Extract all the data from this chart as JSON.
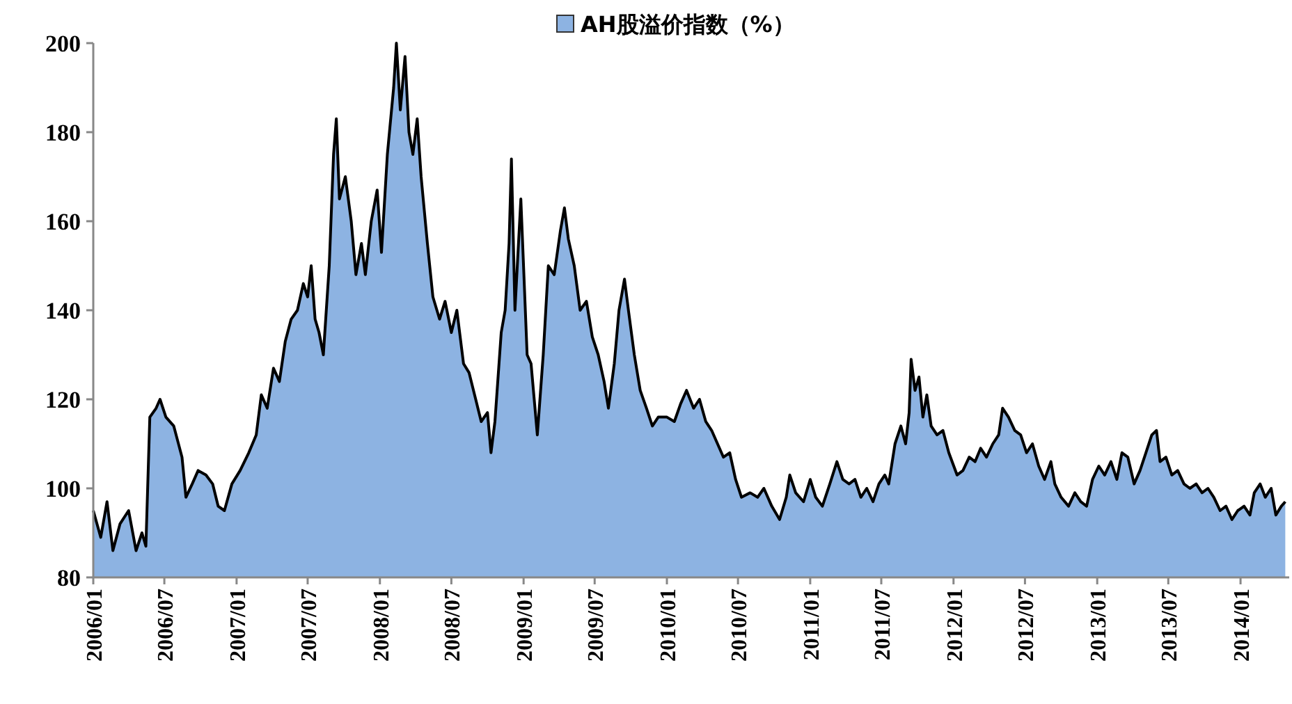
{
  "chart_data": {
    "type": "area",
    "legend": "top",
    "grid": false,
    "xlim": [
      "2006-01-01",
      "2014-05-05"
    ],
    "xticks": [
      {
        "value": "2006-01",
        "label": "2006/01"
      },
      {
        "value": "2006-07",
        "label": "2006/07"
      },
      {
        "value": "2007-01",
        "label": "2007/01"
      },
      {
        "value": "2007-07",
        "label": "2007/07"
      },
      {
        "value": "2008-01",
        "label": "2008/01"
      },
      {
        "value": "2008-07",
        "label": "2008/07"
      },
      {
        "value": "2009-01",
        "label": "2009/01"
      },
      {
        "value": "2009-07",
        "label": "2009/07"
      },
      {
        "value": "2010-01",
        "label": "2010/01"
      },
      {
        "value": "2010-07",
        "label": "2010/07"
      },
      {
        "value": "2011-01",
        "label": "2011/01"
      },
      {
        "value": "2011-07",
        "label": "2011/07"
      },
      {
        "value": "2012-01",
        "label": "2012/01"
      },
      {
        "value": "2012-07",
        "label": "2012/07"
      },
      {
        "value": "2013-01",
        "label": "2013/01"
      },
      {
        "value": "2013-07",
        "label": "2013/07"
      },
      {
        "value": "2014-01",
        "label": "2014/01"
      }
    ],
    "ylim": [
      80,
      200
    ],
    "yticks": [
      80,
      100,
      120,
      140,
      160,
      180,
      200
    ],
    "series": [
      {
        "name": "AH股溢价指数（%）",
        "color": "#8db3e2",
        "x": [
          "2006-01-01",
          "2006-01-20",
          "2006-02-05",
          "2006-02-20",
          "2006-03-10",
          "2006-04-01",
          "2006-04-20",
          "2006-05-05",
          "2006-05-15",
          "2006-05-25",
          "2006-06-10",
          "2006-06-20",
          "2006-07-05",
          "2006-07-25",
          "2006-08-15",
          "2006-08-25",
          "2006-09-10",
          "2006-09-25",
          "2006-10-15",
          "2006-11-01",
          "2006-11-15",
          "2006-12-01",
          "2006-12-20",
          "2007-01-10",
          "2007-02-01",
          "2007-02-20",
          "2007-03-05",
          "2007-03-20",
          "2007-04-05",
          "2007-04-20",
          "2007-05-05",
          "2007-05-20",
          "2007-06-05",
          "2007-06-20",
          "2007-07-01",
          "2007-07-10",
          "2007-07-20",
          "2007-07-30",
          "2007-08-10",
          "2007-08-25",
          "2007-09-05",
          "2007-09-12",
          "2007-09-20",
          "2007-10-05",
          "2007-10-20",
          "2007-11-01",
          "2007-11-15",
          "2007-11-25",
          "2007-12-10",
          "2007-12-25",
          "2008-01-05",
          "2008-01-20",
          "2008-02-05",
          "2008-02-12",
          "2008-02-22",
          "2008-03-05",
          "2008-03-15",
          "2008-03-25",
          "2008-04-05",
          "2008-04-15",
          "2008-05-01",
          "2008-05-15",
          "2008-06-01",
          "2008-06-15",
          "2008-07-01",
          "2008-07-15",
          "2008-08-01",
          "2008-08-15",
          "2008-09-01",
          "2008-09-15",
          "2008-10-01",
          "2008-10-10",
          "2008-10-20",
          "2008-11-05",
          "2008-11-15",
          "2008-11-25",
          "2008-12-01",
          "2008-12-10",
          "2008-12-25",
          "2009-01-10",
          "2009-01-20",
          "2009-02-05",
          "2009-02-20",
          "2009-03-05",
          "2009-03-20",
          "2009-04-05",
          "2009-04-15",
          "2009-04-25",
          "2009-05-10",
          "2009-05-25",
          "2009-06-10",
          "2009-06-25",
          "2009-07-10",
          "2009-07-25",
          "2009-08-05",
          "2009-08-20",
          "2009-09-01",
          "2009-09-15",
          "2009-09-25",
          "2009-10-10",
          "2009-10-25",
          "2009-11-10",
          "2009-11-25",
          "2009-12-10",
          "2010-01-01",
          "2010-01-20",
          "2010-02-05",
          "2010-02-20",
          "2010-03-10",
          "2010-03-25",
          "2010-04-10",
          "2010-04-25",
          "2010-05-10",
          "2010-05-25",
          "2010-06-10",
          "2010-06-25",
          "2010-07-10",
          "2010-08-01",
          "2010-08-20",
          "2010-09-05",
          "2010-09-25",
          "2010-10-15",
          "2010-11-01",
          "2010-11-10",
          "2010-11-25",
          "2010-12-15",
          "2011-01-01",
          "2011-01-15",
          "2011-02-01",
          "2011-02-20",
          "2011-03-10",
          "2011-03-25",
          "2011-04-10",
          "2011-04-25",
          "2011-05-10",
          "2011-05-25",
          "2011-06-10",
          "2011-06-25",
          "2011-07-10",
          "2011-07-20",
          "2011-08-05",
          "2011-08-20",
          "2011-09-01",
          "2011-09-10",
          "2011-09-15",
          "2011-09-25",
          "2011-10-05",
          "2011-10-15",
          "2011-10-25",
          "2011-11-05",
          "2011-11-20",
          "2011-12-05",
          "2011-12-20",
          "2012-01-10",
          "2012-01-25",
          "2012-02-10",
          "2012-02-25",
          "2012-03-10",
          "2012-03-25",
          "2012-04-10",
          "2012-04-25",
          "2012-05-05",
          "2012-05-20",
          "2012-06-05",
          "2012-06-20",
          "2012-07-05",
          "2012-07-20",
          "2012-08-05",
          "2012-08-20",
          "2012-09-05",
          "2012-09-15",
          "2012-10-01",
          "2012-10-20",
          "2012-11-05",
          "2012-11-20",
          "2012-12-05",
          "2012-12-20",
          "2013-01-05",
          "2013-01-20",
          "2013-02-05",
          "2013-02-20",
          "2013-03-05",
          "2013-03-20",
          "2013-04-05",
          "2013-04-20",
          "2013-05-05",
          "2013-05-20",
          "2013-06-01",
          "2013-06-10",
          "2013-06-25",
          "2013-07-10",
          "2013-07-25",
          "2013-08-10",
          "2013-08-25",
          "2013-09-10",
          "2013-09-25",
          "2013-10-10",
          "2013-10-25",
          "2013-11-10",
          "2013-11-25",
          "2013-12-10",
          "2013-12-25",
          "2014-01-10",
          "2014-01-25",
          "2014-02-05",
          "2014-02-20",
          "2014-03-05",
          "2014-03-20",
          "2014-04-01",
          "2014-04-15",
          "2014-04-25"
        ],
        "values": [
          95,
          89,
          97,
          86,
          92,
          95,
          86,
          90,
          87,
          116,
          118,
          120,
          116,
          114,
          107,
          98,
          101,
          104,
          103,
          101,
          96,
          95,
          101,
          104,
          108,
          112,
          121,
          118,
          127,
          124,
          133,
          138,
          140,
          146,
          143,
          150,
          138,
          135,
          130,
          150,
          175,
          183,
          165,
          170,
          160,
          148,
          155,
          148,
          160,
          167,
          153,
          175,
          190,
          200,
          185,
          197,
          180,
          175,
          183,
          170,
          155,
          143,
          138,
          142,
          135,
          140,
          128,
          126,
          120,
          115,
          117,
          108,
          115,
          135,
          140,
          155,
          174,
          140,
          165,
          130,
          128,
          112,
          130,
          150,
          148,
          158,
          163,
          156,
          150,
          140,
          142,
          134,
          130,
          124,
          118,
          128,
          140,
          147,
          140,
          130,
          122,
          118,
          114,
          116,
          116,
          115,
          119,
          122,
          118,
          120,
          115,
          113,
          110,
          107,
          108,
          102,
          98,
          99,
          98,
          100,
          96,
          93,
          98,
          103,
          99,
          97,
          102,
          98,
          96,
          101,
          106,
          102,
          101,
          102,
          98,
          100,
          97,
          101,
          103,
          101,
          110,
          114,
          110,
          117,
          129,
          122,
          125,
          116,
          121,
          114,
          112,
          113,
          108,
          103,
          104,
          107,
          106,
          109,
          107,
          110,
          112,
          118,
          116,
          113,
          112,
          108,
          110,
          105,
          102,
          106,
          101,
          98,
          96,
          99,
          97,
          96,
          102,
          105,
          103,
          106,
          102,
          108,
          107,
          101,
          104,
          108,
          112,
          113,
          106,
          107,
          103,
          104,
          101,
          100,
          101,
          99,
          100,
          98,
          95,
          96,
          93,
          95,
          96,
          94,
          99,
          101,
          98,
          100,
          94,
          96,
          97
        ]
      }
    ]
  }
}
